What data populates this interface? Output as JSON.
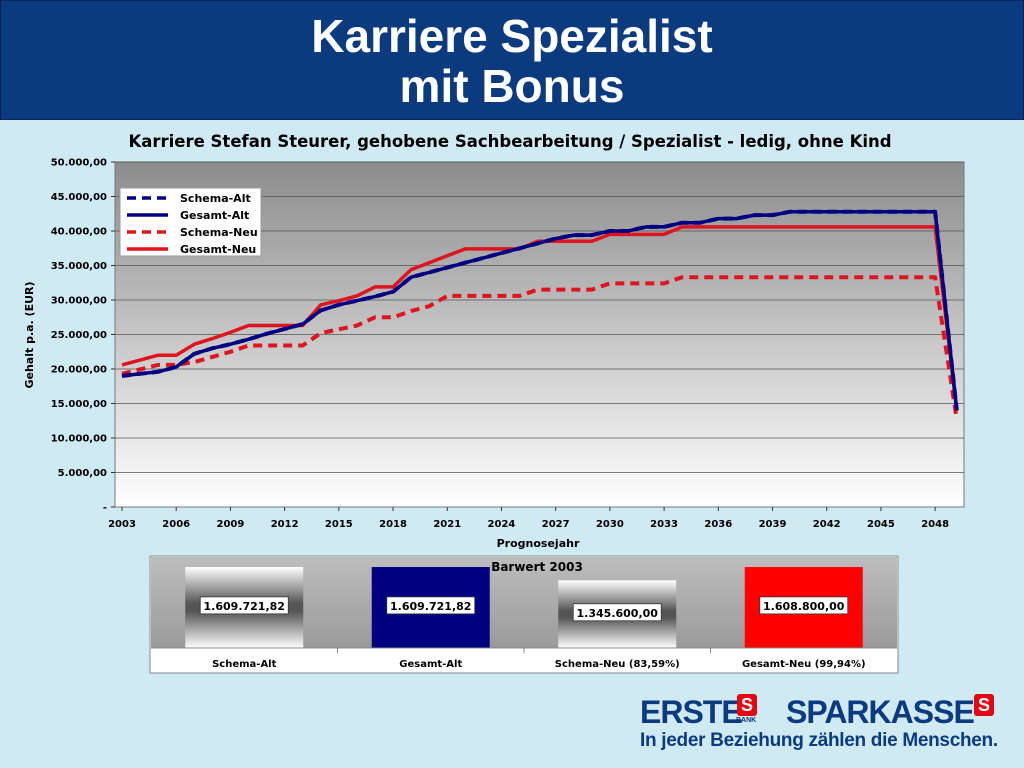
{
  "header": {
    "title_line1": "Karriere Spezialist",
    "title_line2": "mit Bonus"
  },
  "chart_data": [
    {
      "type": "line",
      "title": "Karriere Stefan Steurer, gehobene Sachbearbeitung / Spezialist - ledig, ohne Kind",
      "xlabel": "Prognosejahr",
      "ylabel": "Gehalt p.a. (EUR)",
      "xlim": [
        2003,
        2049.8
      ],
      "ylim": [
        0,
        50000
      ],
      "x_ticks": [
        "2003",
        "2006",
        "2009",
        "2012",
        "2015",
        "2018",
        "2021",
        "2024",
        "2027",
        "2030",
        "2033",
        "2036",
        "2039",
        "2042",
        "2045",
        "2048"
      ],
      "y_ticks": [
        "-",
        "5.000,00",
        "10.000,00",
        "15.000,00",
        "20.000,00",
        "25.000,00",
        "30.000,00",
        "35.000,00",
        "40.000,00",
        "45.000,00",
        "50.000,00"
      ],
      "grid": true,
      "legend_position": "top-left",
      "series": [
        {
          "name": "Schema-Alt",
          "color": "#000080",
          "style": "dashed",
          "points": [
            [
              2003,
              19000
            ],
            [
              2004,
              19300
            ],
            [
              2005,
              19600
            ],
            [
              2006,
              20300
            ],
            [
              2007,
              22200
            ],
            [
              2008,
              23000
            ],
            [
              2009,
              23600
            ],
            [
              2010,
              24300
            ],
            [
              2011,
              25100
            ],
            [
              2012,
              25800
            ],
            [
              2013,
              26500
            ],
            [
              2014,
              28500
            ],
            [
              2015,
              29300
            ],
            [
              2016,
              29900
            ],
            [
              2017,
              30500
            ],
            [
              2018,
              31200
            ],
            [
              2019,
              33300
            ],
            [
              2020,
              34000
            ],
            [
              2021,
              34700
            ],
            [
              2022,
              35400
            ],
            [
              2023,
              36100
            ],
            [
              2024,
              36800
            ],
            [
              2025,
              37500
            ],
            [
              2026,
              38200
            ],
            [
              2027,
              38900
            ],
            [
              2028,
              39400
            ],
            [
              2029,
              39400
            ],
            [
              2030,
              40000
            ],
            [
              2031,
              40000
            ],
            [
              2032,
              40600
            ],
            [
              2033,
              40600
            ],
            [
              2034,
              41200
            ],
            [
              2035,
              41200
            ],
            [
              2036,
              41800
            ],
            [
              2037,
              41800
            ],
            [
              2038,
              42300
            ],
            [
              2039,
              42300
            ],
            [
              2040,
              42800
            ],
            [
              2048,
              42800
            ],
            [
              2049.2,
              14000
            ]
          ]
        },
        {
          "name": "Gesamt-Alt",
          "color": "#000080",
          "style": "solid",
          "points": [
            [
              2003,
              19000
            ],
            [
              2004,
              19300
            ],
            [
              2005,
              19600
            ],
            [
              2006,
              20300
            ],
            [
              2007,
              22200
            ],
            [
              2008,
              23000
            ],
            [
              2009,
              23600
            ],
            [
              2010,
              24300
            ],
            [
              2011,
              25100
            ],
            [
              2012,
              25800
            ],
            [
              2013,
              26500
            ],
            [
              2014,
              28500
            ],
            [
              2015,
              29300
            ],
            [
              2016,
              29900
            ],
            [
              2017,
              30500
            ],
            [
              2018,
              31200
            ],
            [
              2019,
              33300
            ],
            [
              2020,
              34000
            ],
            [
              2021,
              34700
            ],
            [
              2022,
              35400
            ],
            [
              2023,
              36100
            ],
            [
              2024,
              36800
            ],
            [
              2025,
              37500
            ],
            [
              2026,
              38200
            ],
            [
              2027,
              38900
            ],
            [
              2028,
              39400
            ],
            [
              2029,
              39400
            ],
            [
              2030,
              40000
            ],
            [
              2031,
              40000
            ],
            [
              2032,
              40600
            ],
            [
              2033,
              40600
            ],
            [
              2034,
              41200
            ],
            [
              2035,
              41200
            ],
            [
              2036,
              41800
            ],
            [
              2037,
              41800
            ],
            [
              2038,
              42300
            ],
            [
              2039,
              42300
            ],
            [
              2040,
              42800
            ],
            [
              2048,
              42800
            ],
            [
              2049.2,
              14000
            ]
          ]
        },
        {
          "name": "Schema-Neu",
          "color": "#e0141e",
          "style": "dashed",
          "points": [
            [
              2003,
              19300
            ],
            [
              2005,
              20600
            ],
            [
              2006,
              20600
            ],
            [
              2007,
              21000
            ],
            [
              2009,
              22500
            ],
            [
              2010,
              23400
            ],
            [
              2013,
              23400
            ],
            [
              2014,
              25200
            ],
            [
              2016,
              26300
            ],
            [
              2017,
              27500
            ],
            [
              2018,
              27500
            ],
            [
              2019,
              28400
            ],
            [
              2020,
              29100
            ],
            [
              2021,
              30600
            ],
            [
              2025,
              30600
            ],
            [
              2026,
              31500
            ],
            [
              2029,
              31500
            ],
            [
              2030,
              32400
            ],
            [
              2033,
              32400
            ],
            [
              2034,
              33300
            ],
            [
              2048,
              33300
            ],
            [
              2049.2,
              12700
            ]
          ]
        },
        {
          "name": "Gesamt-Neu",
          "color": "#e0141e",
          "style": "solid",
          "points": [
            [
              2003,
              20600
            ],
            [
              2005,
              22000
            ],
            [
              2006,
              22000
            ],
            [
              2007,
              23600
            ],
            [
              2008,
              24400
            ],
            [
              2009,
              25300
            ],
            [
              2010,
              26300
            ],
            [
              2013,
              26300
            ],
            [
              2014,
              29300
            ],
            [
              2015,
              29900
            ],
            [
              2016,
              30600
            ],
            [
              2017,
              31900
            ],
            [
              2018,
              31900
            ],
            [
              2019,
              34400
            ],
            [
              2020,
              35400
            ],
            [
              2021,
              36400
            ],
            [
              2022,
              37400
            ],
            [
              2025,
              37400
            ],
            [
              2026,
              38500
            ],
            [
              2029,
              38500
            ],
            [
              2030,
              39500
            ],
            [
              2033,
              39500
            ],
            [
              2034,
              40600
            ],
            [
              2048,
              40600
            ],
            [
              2049.2,
              14000
            ]
          ]
        }
      ]
    },
    {
      "type": "bar",
      "title": "Barwert 2003",
      "categories": [
        "Schema-Alt",
        "Gesamt-Alt",
        "Schema-Neu (83,59%)",
        "Gesamt-Neu (99,94%)"
      ],
      "values": [
        1609721.82,
        1609721.82,
        1345600.0,
        1608800.0
      ],
      "data_labels": [
        "1.609.721,82",
        "1.609.721,82",
        "1.345.600,00",
        "1.608.800,00"
      ],
      "colors": [
        "gradient-gray",
        "#000080",
        "gradient-gray",
        "#ff0000"
      ]
    }
  ],
  "footer": {
    "brand1": "ERSTE",
    "brand1_sub": "BANK",
    "brand2": "SPARKASSE",
    "slogan": "In jeder Beziehung zählen die Menschen."
  }
}
